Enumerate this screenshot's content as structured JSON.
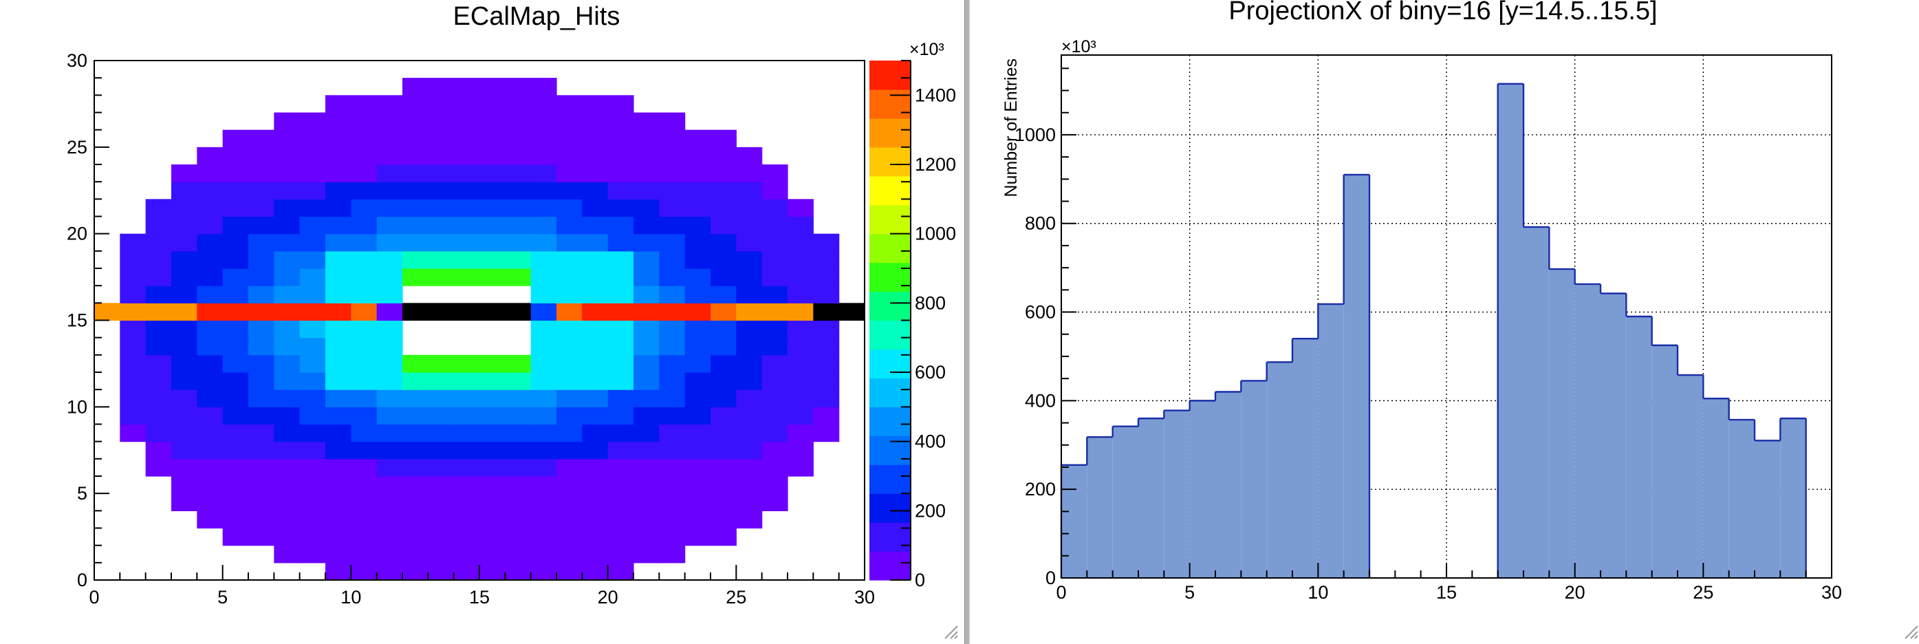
{
  "canvas": {
    "left_pad_name": "ECalMap_Hits",
    "right_pad_name": "ProjectionX"
  },
  "chart_data": [
    {
      "type": "heatmap",
      "title": "ECalMap_Hits",
      "xlabel": "",
      "ylabel": "",
      "xlim": [
        0,
        30
      ],
      "ylim": [
        0,
        30
      ],
      "x_ticks": [
        "0",
        "5",
        "10",
        "15",
        "20",
        "25",
        "30"
      ],
      "y_ticks": [
        "0",
        "5",
        "10",
        "15",
        "20",
        "25",
        "30"
      ],
      "bins_x": 30,
      "bins_y": 30,
      "color_axis": {
        "min": 0,
        "max": 1500,
        "exponent_label": "×10³",
        "ticks": [
          "0",
          "200",
          "400",
          "600",
          "800",
          "1000",
          "1200",
          "1400"
        ],
        "palette": [
          "#6a00ff",
          "#3a10ff",
          "#0018f0",
          "#0040ff",
          "#0070ff",
          "#0090ff",
          "#00bfff",
          "#00e8ff",
          "#00ffc0",
          "#00ff80",
          "#30ff10",
          "#90ff00",
          "#c8ff00",
          "#ffff00",
          "#ffc800",
          "#ff9800",
          "#ff6800",
          "#ff2000"
        ]
      },
      "row_widths": {
        "0": [
          9,
          21
        ],
        "1": [
          7,
          23
        ],
        "2": [
          5,
          25
        ],
        "3": [
          4,
          26
        ],
        "4": [
          3,
          27
        ],
        "5": [
          3,
          27
        ],
        "6": [
          2,
          28
        ],
        "7": [
          2,
          28
        ],
        "8": [
          1,
          29
        ],
        "9": [
          1,
          29
        ],
        "10": [
          1,
          29
        ],
        "11": [
          1,
          29
        ],
        "12": [
          1,
          29
        ],
        "13": [
          1,
          29
        ],
        "14": [
          1,
          29
        ],
        "15": [
          0,
          30
        ],
        "16": [
          1,
          29
        ],
        "17": [
          1,
          29
        ],
        "18": [
          1,
          29
        ],
        "19": [
          1,
          29
        ],
        "20": [
          2,
          28
        ],
        "21": [
          2,
          28
        ],
        "22": [
          3,
          27
        ],
        "23": [
          3,
          27
        ],
        "24": [
          4,
          26
        ],
        "25": [
          5,
          25
        ],
        "26": [
          7,
          23
        ],
        "27": [
          9,
          21
        ],
        "28": [
          12,
          18
        ]
      },
      "bright_row_15": [
        {
          "x": [
            0,
            1
          ],
          "value": 1250
        },
        {
          "x": [
            1,
            4
          ],
          "value": 1300
        },
        {
          "x": [
            4,
            8
          ],
          "value": 1420
        },
        {
          "x": [
            8,
            10
          ],
          "value": 1480
        },
        {
          "x": [
            10,
            11
          ],
          "value": 1400
        },
        {
          "x": [
            11,
            12
          ],
          "value": 80
        },
        {
          "x": [
            12,
            17
          ],
          "value": -1
        },
        {
          "x": [
            17,
            18
          ],
          "value": 320
        },
        {
          "x": [
            18,
            19
          ],
          "value": 1380
        },
        {
          "x": [
            19,
            21
          ],
          "value": 1440
        },
        {
          "x": [
            21,
            24
          ],
          "value": 1420
        },
        {
          "x": [
            24,
            25
          ],
          "value": 1380
        },
        {
          "x": [
            25,
            28
          ],
          "value": 1300
        },
        {
          "x": [
            28,
            30
          ],
          "value": -1
        }
      ]
    },
    {
      "type": "bar",
      "title": "ProjectionX of biny=16 [y=14.5..15.5]",
      "xlabel": "",
      "ylabel": "Number of Entries",
      "y_exponent_label": "×10³",
      "xlim": [
        0,
        30
      ],
      "ylim": [
        0,
        1180
      ],
      "grid": true,
      "x_ticks": [
        "0",
        "5",
        "10",
        "15",
        "20",
        "25",
        "30"
      ],
      "y_ticks": [
        "0",
        "200",
        "400",
        "600",
        "800",
        "1000"
      ],
      "bin_edges": [
        0,
        1,
        2,
        3,
        4,
        5,
        6,
        7,
        8,
        9,
        10,
        11,
        12,
        13,
        14,
        15,
        16,
        17,
        18,
        19,
        20,
        21,
        22,
        23,
        24,
        25,
        26,
        27,
        28,
        29,
        30
      ],
      "values": [
        255,
        318,
        342,
        360,
        378,
        400,
        420,
        445,
        487,
        540,
        618,
        910,
        0,
        0,
        0,
        0,
        0,
        1115,
        792,
        697,
        663,
        642,
        590,
        525,
        458,
        405,
        357,
        310,
        360,
        0
      ],
      "fill_color": "#7b9cd3",
      "line_color": "#1a2ca6"
    }
  ]
}
